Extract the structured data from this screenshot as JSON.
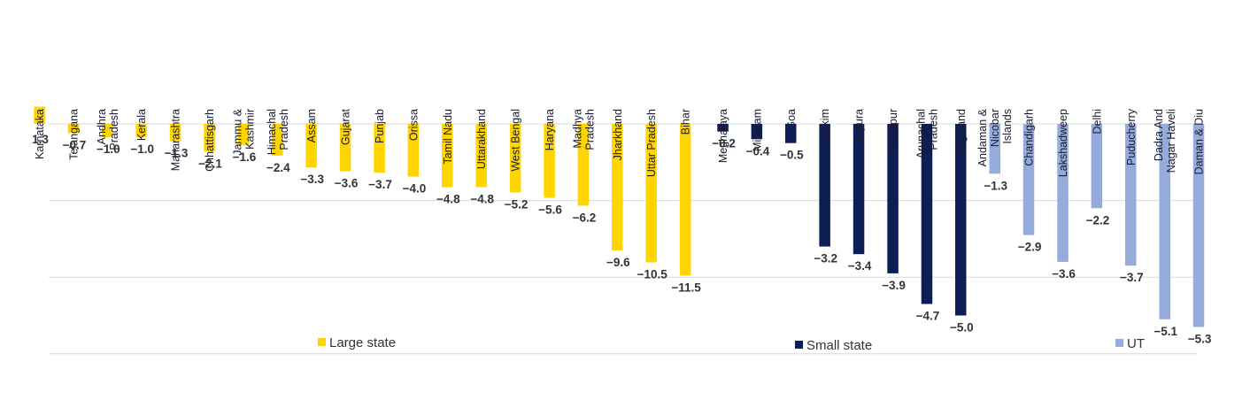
{
  "chart_data": {
    "type": "bar",
    "title": "",
    "xlabel": "",
    "ylabel": "",
    "ylim": [
      -5.5,
      1.5
    ],
    "secondary_ylim": [
      -12,
      1.5
    ],
    "grid": true,
    "legend_placement": "bottom",
    "colors": {
      "Large state": "#FFD500",
      "Small state": "#0D1E55",
      "UT": "#95ABDC"
    },
    "series": [
      {
        "name": "Large state",
        "axis": "secondary",
        "categories": [
          "Karnataka",
          "Telangana",
          "Andhra Pradesh",
          "Kerala",
          "Maharashtra",
          "Chhattisgarh",
          "Jammu & Kashmir",
          "Himachal Pradesh",
          "Assam",
          "Gujarat",
          "Punjab",
          "Orissa",
          "Tamil Nadu",
          "Uttarakhand",
          "West Bengal",
          "Haryana",
          "Madhya Pradesh",
          "Jharkhand",
          "Uttar Pradesh",
          "Bihar"
        ],
        "values": [
          1.3,
          -0.7,
          -1.0,
          -1.0,
          -1.3,
          -2.1,
          -1.6,
          -2.4,
          -3.3,
          -3.6,
          -3.7,
          -4.0,
          -4.8,
          -4.8,
          -5.2,
          -5.6,
          -6.2,
          -9.6,
          -10.5,
          -11.5
        ],
        "value_labels": [
          "1.3",
          "-0.7",
          "-1.0",
          "-1.0",
          "-1.3",
          "-2.1",
          "-1.6",
          "-2.4",
          "-3.3",
          "-3.6",
          "-3.7",
          "-4.0",
          "-4.8",
          "-4.8",
          "-5.2",
          "-5.6",
          "-6.2",
          "-9.6",
          "-10.5",
          "-11.5"
        ]
      },
      {
        "name": "Small state",
        "axis": "primary",
        "categories": [
          "Meghalaya",
          "Mizoram",
          "Goa",
          "Sikkim",
          "Tripura",
          "Manipur",
          "Arunachal Pradesh",
          "Nagaland"
        ],
        "values": [
          -0.2,
          -0.4,
          -0.5,
          -3.2,
          -3.4,
          -3.9,
          -4.7,
          -5.0
        ],
        "value_labels": [
          "-0.2",
          "-0.4",
          "-0.5",
          "-3.2",
          "-3.4",
          "-3.9",
          "-4.7",
          "-5.0"
        ]
      },
      {
        "name": "UT",
        "axis": "primary",
        "categories": [
          "Andaman & Nicobar Islands",
          "Chandigarh",
          "Lakshadweep",
          "Delhi",
          "Puducherry",
          "Dadra And Nagar Haveli",
          "Daman & Diu"
        ],
        "values": [
          -1.3,
          -2.9,
          -3.6,
          -2.2,
          -3.7,
          -5.1,
          -5.3
        ],
        "value_labels": [
          "-1.3",
          "-2.9",
          "-3.6",
          "-2.2",
          "-3.7",
          "-5.1",
          "-5.3"
        ]
      }
    ],
    "category_label_lines": {
      "Andhra Pradesh": [
        "Andhra",
        "Pradesh"
      ],
      "Jammu & Kashmir": [
        "Jammu &",
        "Kashmir"
      ],
      "Himachal Pradesh": [
        "Himachal",
        "Pradesh"
      ],
      "Madhya Pradesh": [
        "Madhya",
        "Pradesh"
      ],
      "Arunachal Pradesh": [
        "Arunachal",
        "Pradesh"
      ],
      "Andaman & Nicobar Islands": [
        "Andaman &",
        "Nicobar",
        "Islands"
      ],
      "Dadra And Nagar Haveli": [
        "Dadra And",
        "Nagar Haveli"
      ]
    },
    "legend": [
      "Large state",
      "Small state",
      "UT"
    ]
  }
}
